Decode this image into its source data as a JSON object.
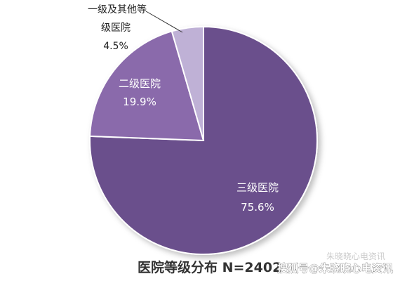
{
  "chart_data": {
    "type": "pie",
    "title": "医院等级分布 N=2402",
    "slices": [
      {
        "label": "三级医院",
        "value": 75.6,
        "value_label": "75.6%",
        "color": "#6b4f8c"
      },
      {
        "label": "二级医院",
        "value": 19.9,
        "value_label": "19.9%",
        "color": "#8a6aab"
      },
      {
        "label_line1": "一级及其他等",
        "label_line2": "级医院",
        "value": 4.5,
        "value_label": "4.5%",
        "color": "#bfb1d6"
      }
    ],
    "start_angle_deg": 0,
    "direction": "clockwise"
  },
  "watermark": {
    "line1": "朱晓晓心电资讯",
    "line2": "搜狐号@朱晓晓心电资讯"
  }
}
